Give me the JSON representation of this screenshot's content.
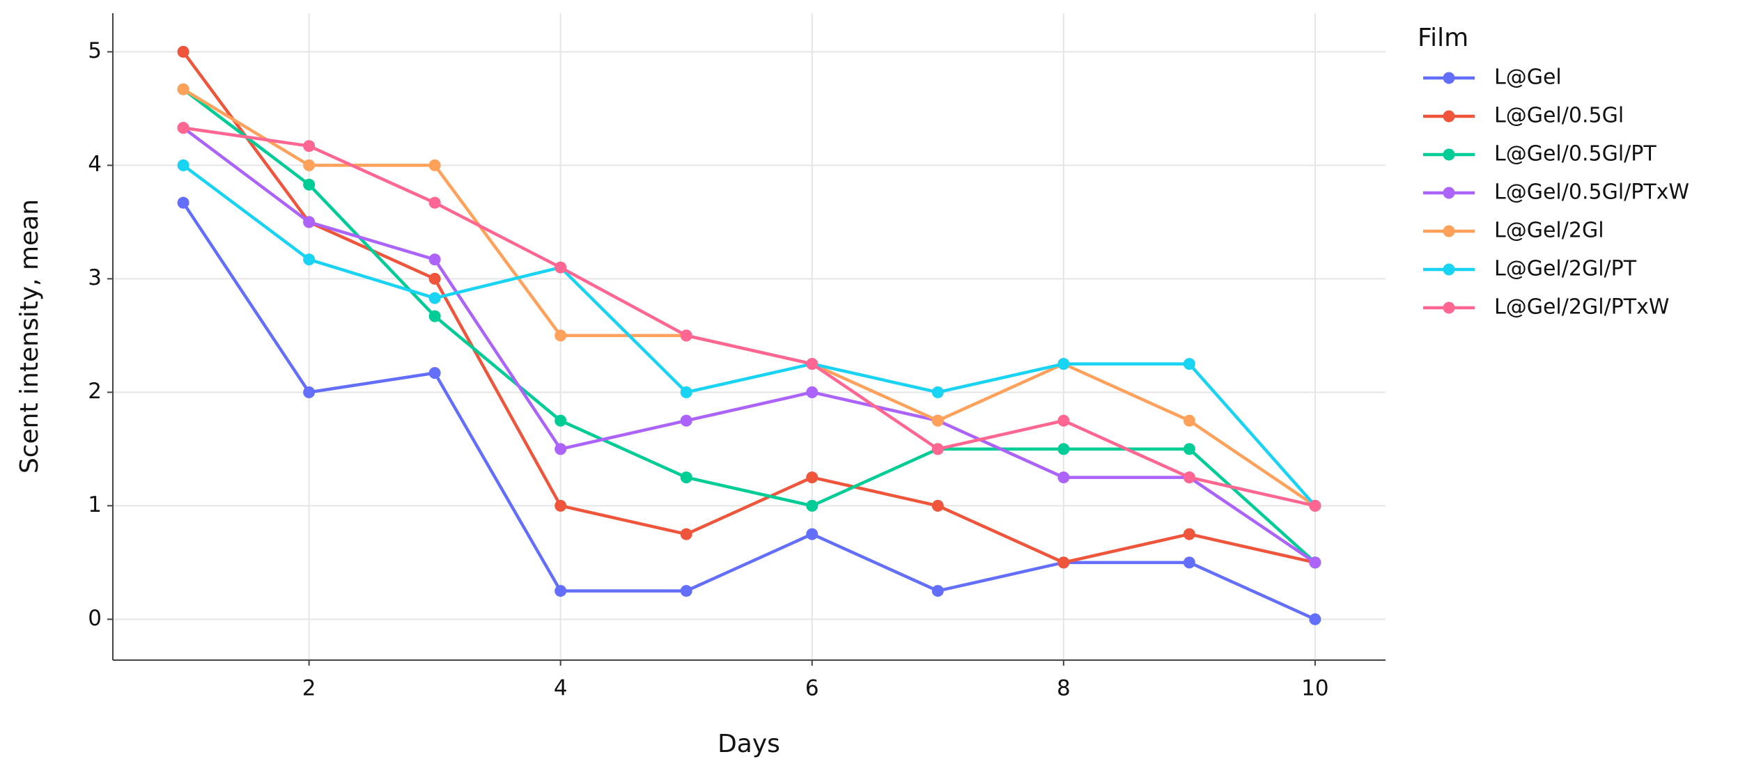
{
  "chart_data": {
    "type": "line",
    "x_label": "Days",
    "y_label": "Scent intensity, mean",
    "legend_title": "Film",
    "x": [
      1,
      2,
      3,
      4,
      5,
      6,
      7,
      8,
      9,
      10
    ],
    "series": [
      {
        "name": "L@Gel",
        "color": "#636efa",
        "values": [
          3.67,
          2,
          2.17,
          0.25,
          0.25,
          0.75,
          0.25,
          0.5,
          0.5,
          0
        ]
      },
      {
        "name": "L@Gel/0.5Gl",
        "color": "#ef553b",
        "values": [
          5,
          3.5,
          3,
          1,
          0.75,
          1.25,
          1,
          0.5,
          0.75,
          0.5
        ]
      },
      {
        "name": "L@Gel/0.5Gl/PT",
        "color": "#00cc96",
        "values": [
          4.67,
          3.83,
          2.67,
          1.75,
          1.25,
          1,
          1.5,
          1.5,
          1.5,
          0.5
        ]
      },
      {
        "name": "L@Gel/0.5Gl/PTxW",
        "color": "#ab63fa",
        "values": [
          4.33,
          3.5,
          3.17,
          1.5,
          1.75,
          2,
          1.75,
          1.25,
          1.25,
          0.5
        ]
      },
      {
        "name": "L@Gel/2Gl",
        "color": "#ffa15a",
        "values": [
          4.67,
          4,
          4,
          2.5,
          2.5,
          2.25,
          1.75,
          2.25,
          1.75,
          1
        ]
      },
      {
        "name": "L@Gel/2Gl/PT",
        "color": "#19d3f3",
        "values": [
          4,
          3.17,
          2.83,
          3.1,
          2,
          2.25,
          2,
          2.25,
          2.25,
          1
        ]
      },
      {
        "name": "L@Gel/2Gl/PTxW",
        "color": "#ff6692",
        "values": [
          4.33,
          4.17,
          3.67,
          3.1,
          2.5,
          2.25,
          1.5,
          1.75,
          1.25,
          1
        ]
      }
    ],
    "xlim": [
      0.44,
      10.56
    ],
    "ylim": [
      -0.36,
      5.34
    ],
    "xticks": [
      2,
      4,
      6,
      8,
      10
    ],
    "yticks": [
      0,
      1,
      2,
      3,
      4,
      5
    ],
    "grid": true,
    "legend": "right"
  }
}
